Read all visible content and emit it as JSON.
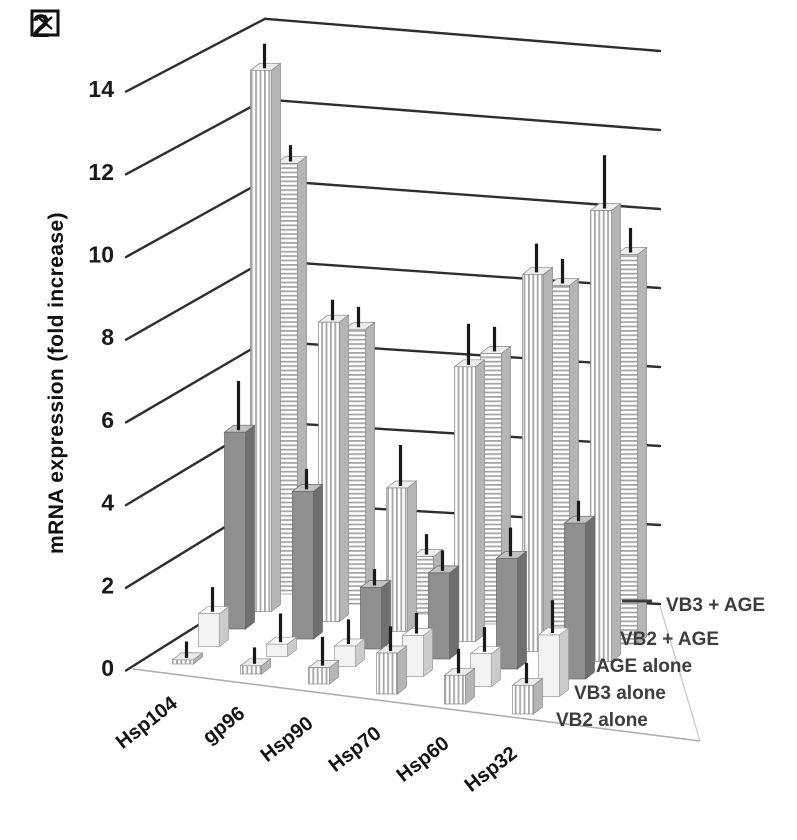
{
  "figure": {
    "label": "図2",
    "glyph": "図",
    "number": "2"
  },
  "axis": {
    "title": "mRNA expression (fold increase)",
    "ticks": [
      0,
      2,
      4,
      6,
      8,
      10,
      12,
      14
    ],
    "ylim": [
      0,
      14
    ]
  },
  "legend": {
    "items": [
      "VB3 + AGE",
      "VB2 + AGE",
      "AGE alone",
      "VB3 alone",
      "VB2 alone"
    ]
  },
  "chart_data": {
    "type": "bar",
    "projection": "3d",
    "title": "図2",
    "ylabel": "mRNA expression (fold increase)",
    "ylim": [
      0,
      14
    ],
    "grid": true,
    "legend_position": "right-bottom",
    "categories": [
      "Hsp104",
      "gp96",
      "Hsp90",
      "Hsp70",
      "Hsp60",
      "Hsp32"
    ],
    "series": [
      {
        "name": "VB2 alone",
        "texture": "vertical-stripes",
        "values": [
          0.1,
          0.2,
          0.4,
          1.0,
          0.7,
          0.7
        ],
        "errors": [
          0.4,
          0.4,
          0.7,
          0.6,
          0.6,
          0.5
        ]
      },
      {
        "name": "VB3 alone",
        "texture": "plain-white",
        "values": [
          0.8,
          0.3,
          0.5,
          1.0,
          0.8,
          1.5
        ],
        "errors": [
          0.6,
          0.7,
          0.6,
          0.5,
          0.6,
          0.8
        ]
      },
      {
        "name": "AGE alone",
        "texture": "solid-gray",
        "values": [
          4.8,
          3.6,
          1.5,
          2.1,
          2.7,
          3.8
        ],
        "errors": [
          1.2,
          0.5,
          0.4,
          0.5,
          0.7,
          0.5
        ]
      },
      {
        "name": "VB2 + AGE",
        "texture": "vertical-stripes",
        "values": [
          13.2,
          7.3,
          3.5,
          6.7,
          9.2,
          11.0
        ],
        "errors": [
          0.6,
          0.5,
          1.0,
          1.0,
          0.7,
          1.3
        ]
      },
      {
        "name": "VB3 + AGE",
        "texture": "horizontal-stripes",
        "values": [
          10.5,
          6.7,
          1.4,
          6.6,
          8.5,
          9.5
        ],
        "errors": [
          0.4,
          0.5,
          0.5,
          0.6,
          0.6,
          0.6
        ]
      }
    ]
  },
  "colors": {
    "background": "#ffffff",
    "grid": "#2e2e2e",
    "error_bar": "#1a1a1a",
    "text": "#1a1a1a",
    "bar_gray": "#8f8f8f",
    "stripe": "#a6a6a6"
  }
}
